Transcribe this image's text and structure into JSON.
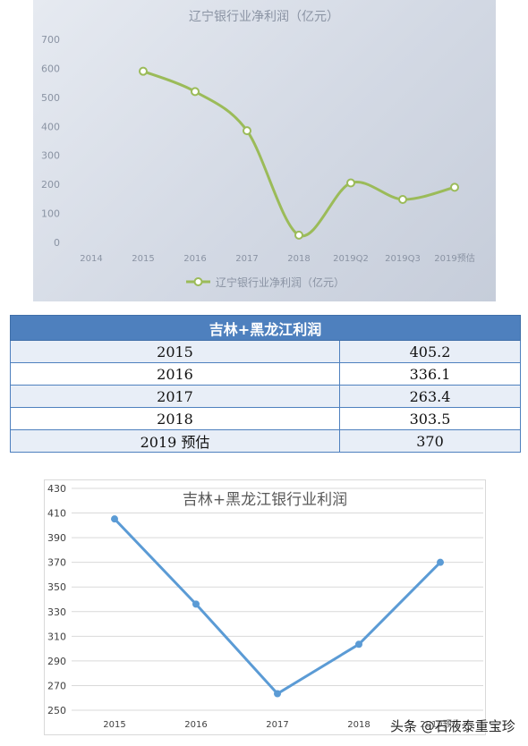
{
  "chart_data": [
    {
      "type": "line",
      "title": "辽宁银行业净利润（亿元）",
      "categories": [
        "2014",
        "2015",
        "2016",
        "2017",
        "2018",
        "2019Q2",
        "2019Q3",
        "2019预估"
      ],
      "series": [
        {
          "name": "辽宁银行业净利润（亿元）",
          "values": [
            null,
            590,
            520,
            385,
            25,
            205,
            148,
            190
          ]
        }
      ],
      "yticks": [
        "0",
        "100",
        "200",
        "300",
        "400",
        "500",
        "600",
        "700"
      ],
      "ylim": [
        0,
        700
      ],
      "legend": "bottom",
      "grid": false,
      "line_color": "#9bbb59"
    },
    {
      "type": "line",
      "title": "吉林+黑龙江银行业利润",
      "categories": [
        "2015",
        "2016",
        "2017",
        "2018",
        "2019预估"
      ],
      "series": [
        {
          "values": [
            405.2,
            336.1,
            263.4,
            303.5,
            370
          ]
        }
      ],
      "yticks": [
        "250",
        "270",
        "290",
        "310",
        "330",
        "350",
        "370",
        "390",
        "410",
        "430"
      ],
      "ylim": [
        250,
        430
      ],
      "grid": true,
      "line_color": "#5b9bd5"
    }
  ],
  "table": {
    "title": "吉林+黑龙江利润",
    "rows": [
      {
        "year": "2015",
        "value": "405.2"
      },
      {
        "year": "2016",
        "value": "336.1"
      },
      {
        "year": "2017",
        "value": "263.4"
      },
      {
        "year": "2018",
        "value": "303.5"
      },
      {
        "year": "2019 预估",
        "value": "370"
      }
    ]
  },
  "watermark": "头条 @石液泰重宝珍"
}
